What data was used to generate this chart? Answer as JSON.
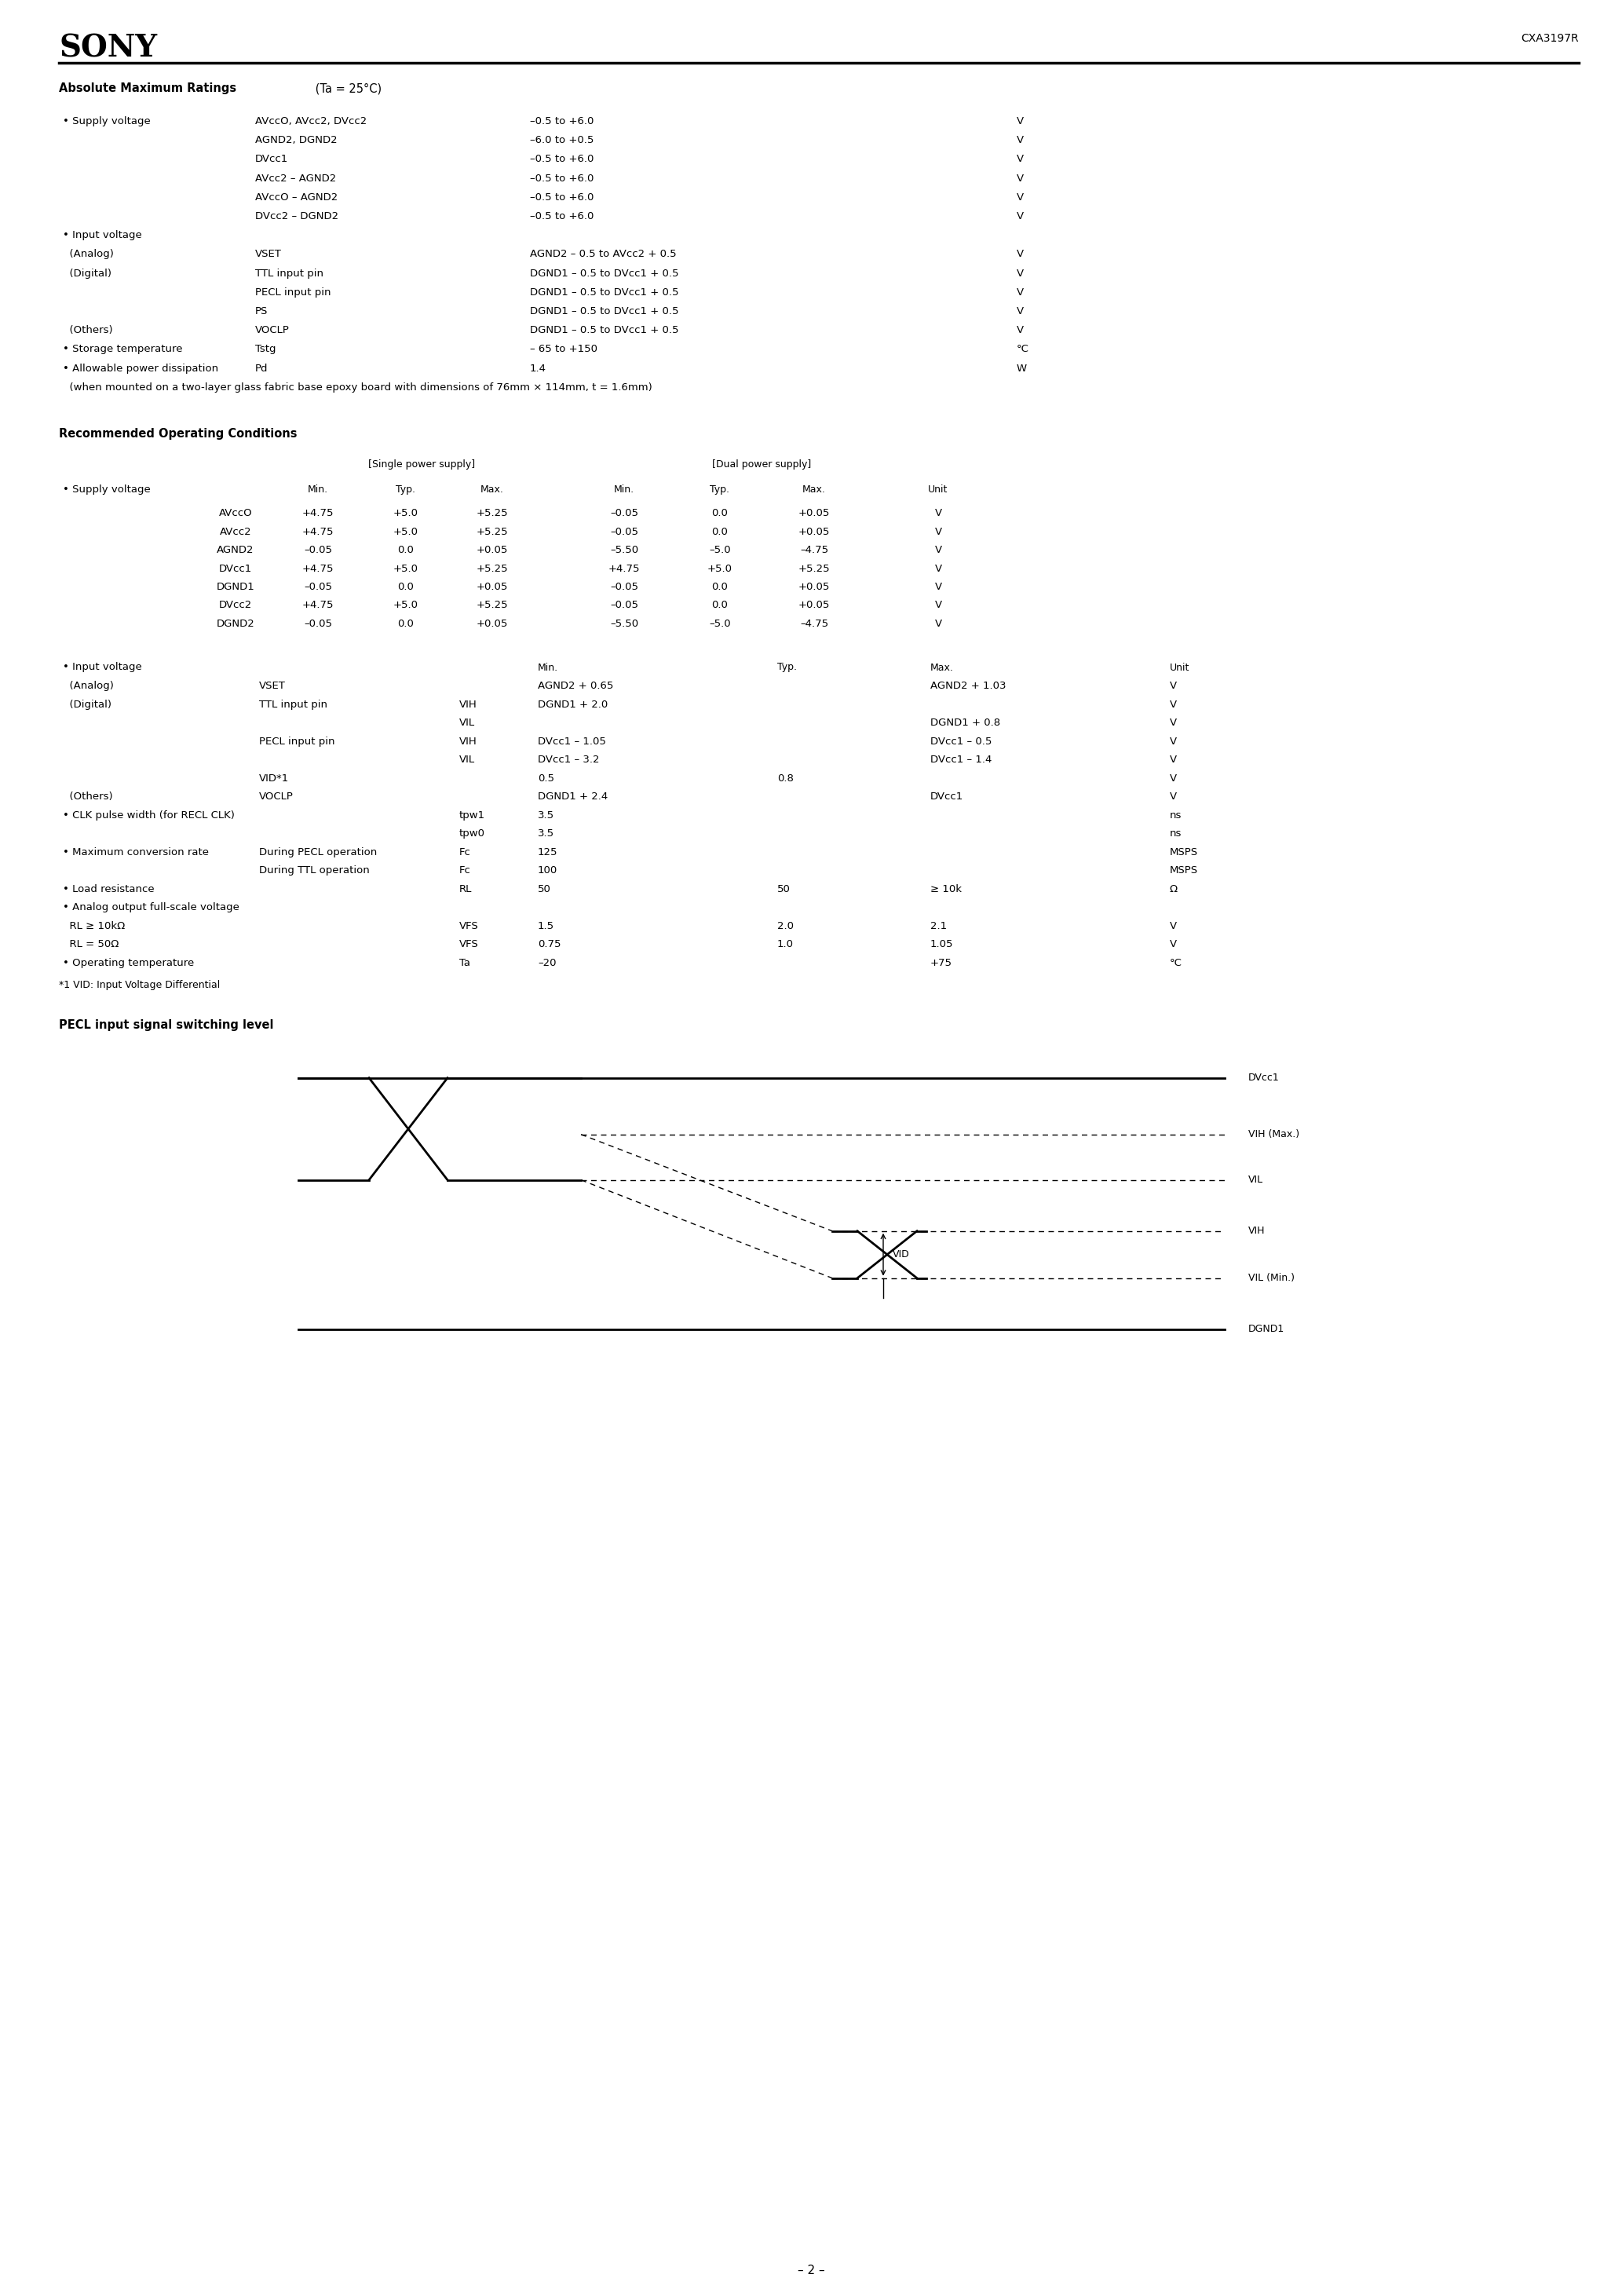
{
  "page_width": 20.66,
  "page_height": 29.24,
  "background_color": "#ffffff",
  "text_color": "#000000",
  "header_sony": "SONY",
  "header_part": "CXA3197R",
  "s1_bold": "Absolute Maximum Ratings",
  "s1_normal": " (Ta = 25°C)",
  "abs_rows": [
    [
      "• Supply voltage",
      "AVccO, AVcc2, DVcc2",
      "–0.5 to +6.0",
      "V"
    ],
    [
      "",
      "AGND2, DGND2",
      "–6.0 to +0.5",
      "V"
    ],
    [
      "",
      "DVcc1",
      "–0.5 to +6.0",
      "V"
    ],
    [
      "",
      "AVcc2 – AGND2",
      "–0.5 to +6.0",
      "V"
    ],
    [
      "",
      "AVccO – AGND2",
      "–0.5 to +6.0",
      "V"
    ],
    [
      "",
      "DVcc2 – DGND2",
      "–0.5 to +6.0",
      "V"
    ],
    [
      "• Input voltage",
      "",
      "",
      ""
    ],
    [
      "  (Analog)",
      "VSET",
      "AGND2 – 0.5 to AVcc2 + 0.5",
      "V"
    ],
    [
      "  (Digital)",
      "TTL input pin",
      "DGND1 – 0.5 to DVcc1 + 0.5",
      "V"
    ],
    [
      "",
      "PECL input pin",
      "DGND1 – 0.5 to DVcc1 + 0.5",
      "V"
    ],
    [
      "",
      "PS",
      "DGND1 – 0.5 to DVcc1 + 0.5",
      "V"
    ],
    [
      "  (Others)",
      "VOCLP",
      "DGND1 – 0.5 to DVcc1 + 0.5",
      "V"
    ],
    [
      "• Storage temperature",
      "Tstg",
      "– 65 to +150",
      "°C"
    ],
    [
      "• Allowable power dissipation",
      "Pd",
      "1.4",
      "W"
    ],
    [
      "  (when mounted on a two-layer glass fabric base epoxy board with dimensions of 76mm × 114mm, t = 1.6mm)",
      "",
      "",
      ""
    ]
  ],
  "s2_title": "Recommended Operating Conditions",
  "roc_rows": [
    {
      "lbl": "AVccO",
      "sm": "+4.75",
      "st": "+5.0",
      "sx": "+5.25",
      "dm": "–0.05",
      "dt": "0.0",
      "dx": "+0.05",
      "u": "V"
    },
    {
      "lbl": "AVcc2",
      "sm": "+4.75",
      "st": "+5.0",
      "sx": "+5.25",
      "dm": "–0.05",
      "dt": "0.0",
      "dx": "+0.05",
      "u": "V"
    },
    {
      "lbl": "AGND2",
      "sm": "–0.05",
      "st": "0.0",
      "sx": "+0.05",
      "dm": "–5.50",
      "dt": "–5.0",
      "dx": "–4.75",
      "u": "V"
    },
    {
      "lbl": "DVcc1",
      "sm": "+4.75",
      "st": "+5.0",
      "sx": "+5.25",
      "dm": "+4.75",
      "dt": "+5.0",
      "dx": "+5.25",
      "u": "V"
    },
    {
      "lbl": "DGND1",
      "sm": "–0.05",
      "st": "0.0",
      "sx": "+0.05",
      "dm": "–0.05",
      "dt": "0.0",
      "dx": "+0.05",
      "u": "V"
    },
    {
      "lbl": "DVcc2",
      "sm": "+4.75",
      "st": "+5.0",
      "sx": "+5.25",
      "dm": "–0.05",
      "dt": "0.0",
      "dx": "+0.05",
      "u": "V"
    },
    {
      "lbl": "DGND2",
      "sm": "–0.05",
      "st": "0.0",
      "sx": "+0.05",
      "dm": "–5.50",
      "dt": "–5.0",
      "dx": "–4.75",
      "u": "V"
    }
  ],
  "iv_rows": [
    {
      "lbl": "  (Analog)",
      "item": "VSET",
      "sym": "",
      "mn": "AGND2 + 0.65",
      "ty": "",
      "mx": "AGND2 + 1.03",
      "u": "V"
    },
    {
      "lbl": "  (Digital)",
      "item": "TTL input pin",
      "sym": "VIH",
      "mn": "DGND1 + 2.0",
      "ty": "",
      "mx": "",
      "u": "V"
    },
    {
      "lbl": "",
      "item": "",
      "sym": "VIL",
      "mn": "",
      "ty": "",
      "mx": "DGND1 + 0.8",
      "u": "V"
    },
    {
      "lbl": "",
      "item": "PECL input pin",
      "sym": "VIH",
      "mn": "DVcc1 – 1.05",
      "ty": "",
      "mx": "DVcc1 – 0.5",
      "u": "V"
    },
    {
      "lbl": "",
      "item": "",
      "sym": "VIL",
      "mn": "DVcc1 – 3.2",
      "ty": "",
      "mx": "DVcc1 – 1.4",
      "u": "V"
    },
    {
      "lbl": "",
      "item": "VID*1",
      "sym": "",
      "mn": "0.5",
      "ty": "0.8",
      "mx": "",
      "u": "V"
    },
    {
      "lbl": "  (Others)",
      "item": "VOCLP",
      "sym": "",
      "mn": "DGND1 + 2.4",
      "ty": "",
      "mx": "DVcc1",
      "u": "V"
    },
    {
      "lbl": "• CLK pulse width (for RECL CLK)",
      "item": "",
      "sym": "tpw1",
      "mn": "3.5",
      "ty": "",
      "mx": "",
      "u": "ns"
    },
    {
      "lbl": "",
      "item": "",
      "sym": "tpw0",
      "mn": "3.5",
      "ty": "",
      "mx": "",
      "u": "ns"
    },
    {
      "lbl": "• Maximum conversion rate",
      "item": "During PECL operation",
      "sym": "Fc",
      "mn": "125",
      "ty": "",
      "mx": "",
      "u": "MSPS"
    },
    {
      "lbl": "",
      "item": "During TTL operation",
      "sym": "Fc",
      "mn": "100",
      "ty": "",
      "mx": "",
      "u": "MSPS"
    },
    {
      "lbl": "• Load resistance",
      "item": "",
      "sym": "RL",
      "mn": "50",
      "ty": "50",
      "mx": "≥ 10k",
      "u": "Ω"
    },
    {
      "lbl": "• Analog output full-scale voltage",
      "item": "",
      "sym": "",
      "mn": "",
      "ty": "",
      "mx": "",
      "u": ""
    },
    {
      "lbl": "  RL ≥ 10kΩ",
      "item": "",
      "sym": "VFS",
      "mn": "1.5",
      "ty": "2.0",
      "mx": "2.1",
      "u": "V"
    },
    {
      "lbl": "  RL = 50Ω",
      "item": "",
      "sym": "VFS",
      "mn": "0.75",
      "ty": "1.0",
      "mx": "1.05",
      "u": "V"
    },
    {
      "lbl": "• Operating temperature",
      "item": "",
      "sym": "Ta",
      "mn": "–20",
      "ty": "",
      "mx": "+75",
      "u": "°C"
    }
  ],
  "footnote": "*1 VID: Input Voltage Differential",
  "pecl_title": "PECL input signal switching level",
  "page_number": "– 2 –"
}
